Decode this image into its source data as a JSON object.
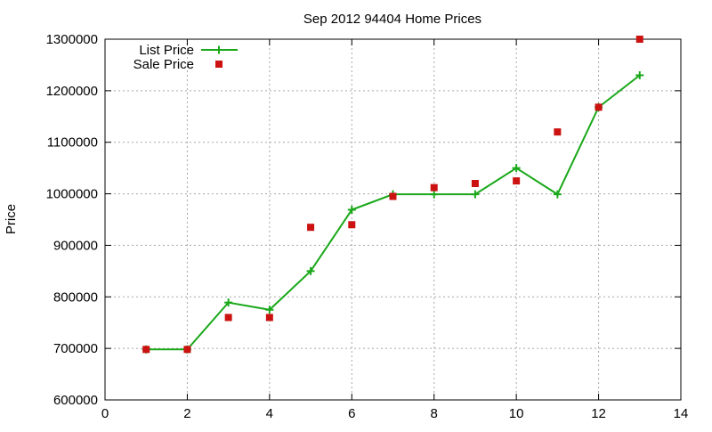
{
  "chart_data": {
    "type": "line",
    "title": "Sep 2012 94404 Home Prices",
    "xlabel": "",
    "ylabel": "Price",
    "xlim": [
      0,
      14
    ],
    "ylim": [
      600000,
      1300000
    ],
    "x_ticks": [
      0,
      2,
      4,
      6,
      8,
      10,
      12,
      14
    ],
    "y_ticks": [
      600000,
      700000,
      800000,
      900000,
      1000000,
      1100000,
      1200000,
      1300000
    ],
    "x_tick_labels": [
      "0",
      "2",
      "4",
      "6",
      "8",
      "10",
      "12",
      "14"
    ],
    "y_tick_labels": [
      "600000",
      "700000",
      "800000",
      "900000",
      "1000000",
      "1100000",
      "1200000",
      "1300000"
    ],
    "grid": true,
    "legend_position": "top-left",
    "series": [
      {
        "name": "List Price",
        "style": "line-with-plus-markers",
        "color": "#1aa81a",
        "x": [
          1,
          2,
          3,
          4,
          5,
          6,
          7,
          8,
          9,
          10,
          11,
          12,
          13
        ],
        "y": [
          698000,
          698000,
          789000,
          775000,
          850000,
          969000,
          999000,
          999000,
          999000,
          1050000,
          999000,
          1168000,
          1230000
        ]
      },
      {
        "name": "Sale Price",
        "style": "square-markers",
        "color": "#cc1111",
        "x": [
          1,
          2,
          3,
          4,
          5,
          6,
          7,
          8,
          9,
          10,
          11,
          12,
          13
        ],
        "y": [
          698000,
          698000,
          760000,
          760000,
          935000,
          940000,
          995000,
          1012000,
          1020000,
          1025000,
          1120000,
          1168000,
          1300000
        ]
      }
    ]
  }
}
